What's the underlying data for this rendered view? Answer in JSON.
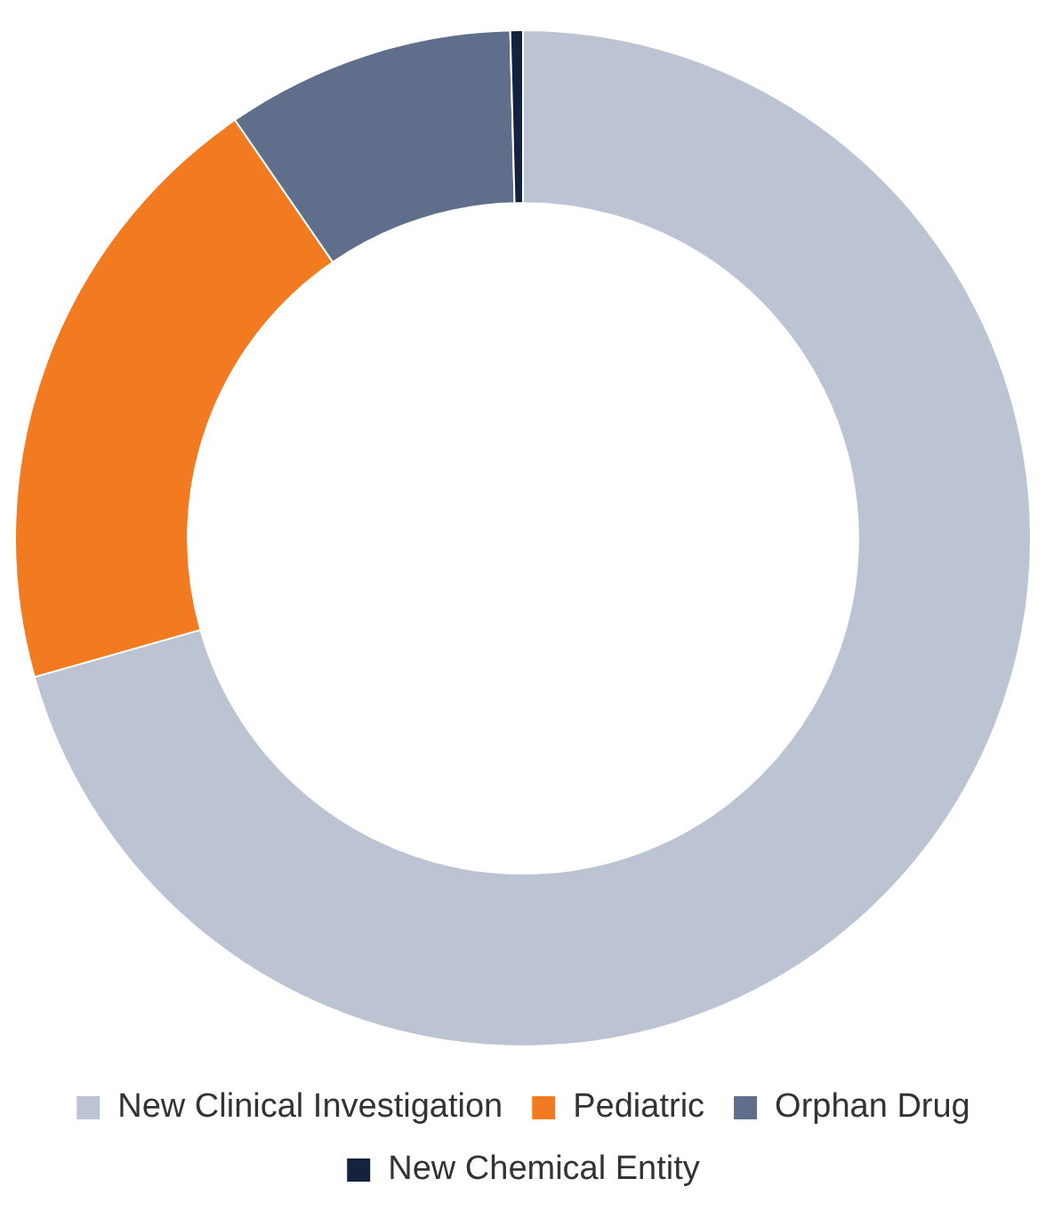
{
  "chart_data": {
    "type": "donut",
    "categories": [
      "New Clinical Investigation",
      "Pediatric",
      "Orphan Drug",
      "New Chemical Entity"
    ],
    "values": [
      70.6,
      19.8,
      9.2,
      0.4
    ],
    "colors": [
      "#bcc3d2",
      "#f27a20",
      "#5f6e8a",
      "#14223d"
    ],
    "legend": "bottom"
  }
}
